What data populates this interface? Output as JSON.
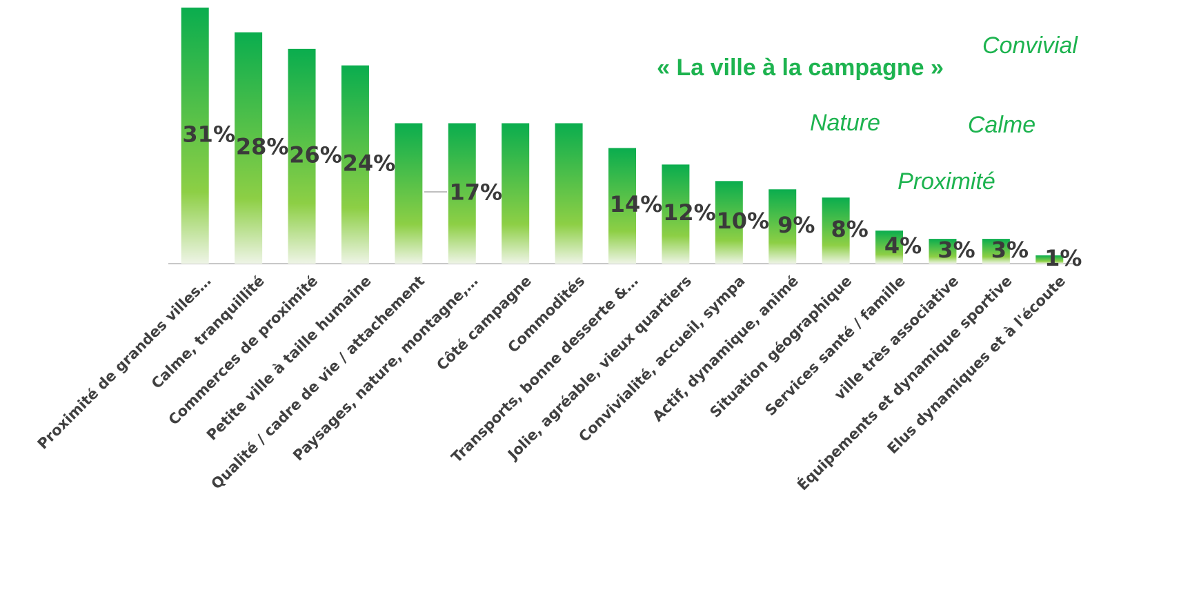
{
  "chart_data": {
    "type": "bar",
    "categories": [
      "Proximité de grandes villes…",
      "Calme, tranquillité",
      "Commerces de proximité",
      "Petite ville à taille humaine",
      "Qualité / cadre de vie / attachement",
      "Paysages, nature, montagne,…",
      "Côté campagne",
      "Commodités",
      "Transports, bonne desserte &…",
      "Jolie, agréable, vieux quartiers",
      "Convivialité, accueil, sympa",
      "Actif, dynamique, animé",
      "Situation géographique",
      "Services santé / famille",
      "ville très associative",
      "Équipements et dynamique sportive",
      "Elus dynamiques et à l'écoute"
    ],
    "values": [
      31,
      28,
      26,
      24,
      17,
      17,
      17,
      17,
      14,
      12,
      10,
      9,
      8,
      4,
      3,
      3,
      1
    ],
    "value_labels": [
      "31%",
      "28%",
      "26%",
      "24%",
      null,
      "17%",
      null,
      null,
      "14%",
      "12%",
      "10%",
      "9%",
      "8%",
      "4%",
      "3%",
      "3%",
      "1%"
    ],
    "color": "#0aad4e",
    "ylim": [
      0,
      31
    ],
    "annotations": [
      {
        "text": "« La ville à la campagne »",
        "style": "bold"
      },
      {
        "text": "Convivial",
        "style": "italic"
      },
      {
        "text": "Nature",
        "style": "italic"
      },
      {
        "text": "Calme",
        "style": "italic"
      },
      {
        "text": "Proximité",
        "style": "italic"
      }
    ]
  }
}
